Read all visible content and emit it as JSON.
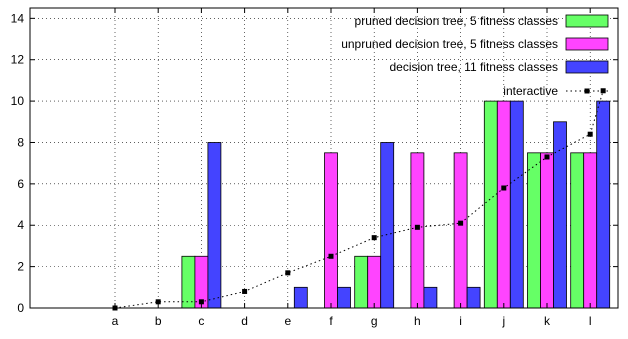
{
  "chart_data": {
    "type": "bar",
    "categories": [
      "a",
      "b",
      "c",
      "d",
      "e",
      "f",
      "g",
      "h",
      "i",
      "j",
      "k",
      "l"
    ],
    "series": [
      {
        "name": "pruned decision tree, 5 fitness classes",
        "values": [
          0,
          0,
          2.5,
          0,
          0,
          0,
          2.5,
          0,
          0,
          10,
          7.5,
          7.5
        ],
        "color": "#66ff66"
      },
      {
        "name": "unpruned decision tree, 5 fitness classes",
        "values": [
          0,
          0,
          2.5,
          0,
          0,
          7.5,
          2.5,
          7.5,
          7.5,
          10,
          7.5,
          7.5
        ],
        "color": "#ff44ff"
      },
      {
        "name": "decision tree, 11 fitness classes",
        "values": [
          0,
          0,
          8,
          0,
          1,
          1,
          8,
          1,
          1,
          10,
          9,
          10
        ],
        "color": "#4444ff"
      }
    ],
    "line_series": {
      "name": "interactive",
      "values": [
        0,
        0.3,
        0.3,
        0.8,
        1.7,
        2.5,
        3.4,
        3.9,
        4.1,
        5.8,
        7.3,
        8.4,
        10.5
      ],
      "x_index": [
        0,
        1,
        2,
        3,
        4,
        5,
        6,
        7,
        8,
        9,
        10,
        11,
        11.3
      ],
      "color": "#000000"
    },
    "yticks": [
      0,
      2,
      4,
      6,
      8,
      10,
      12,
      14
    ],
    "ylim": [
      0,
      14.5
    ],
    "grid": true,
    "legend_position": "top-right"
  }
}
